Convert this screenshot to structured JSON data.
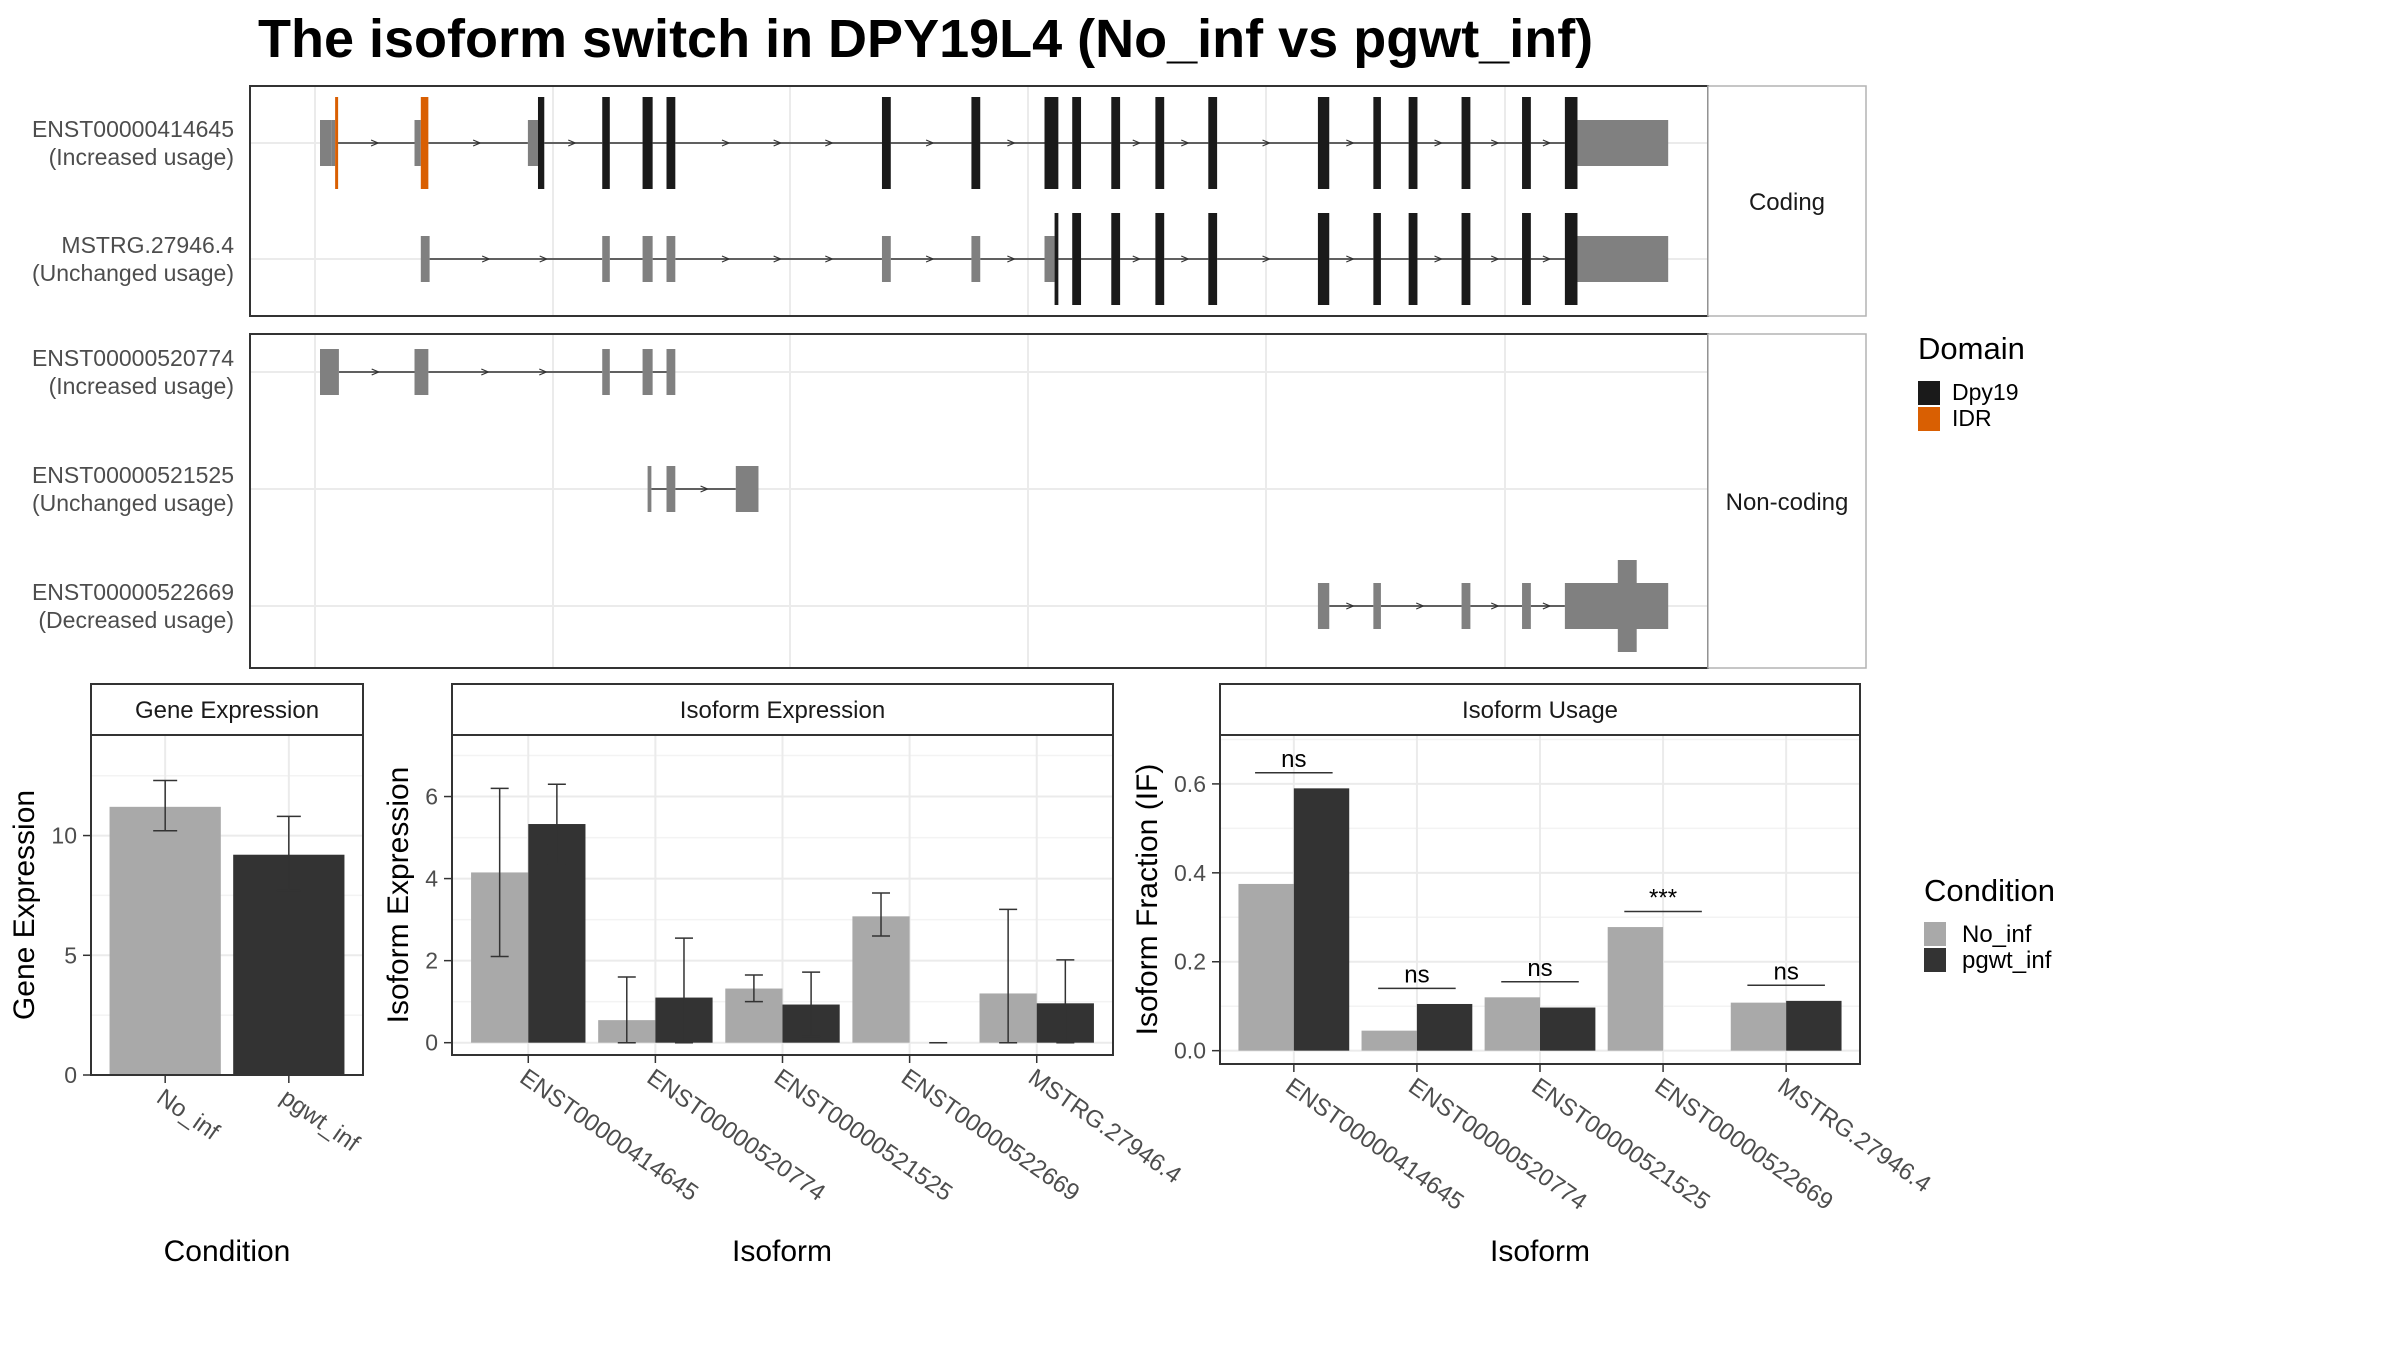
{
  "title": "The isoform switch in DPY19L4 (No_inf vs pgwt_inf)",
  "colors": {
    "no_inf": "#a9a9a9",
    "pgwt_inf": "#333333",
    "domain_dpy19": "#1a1a1a",
    "domain_idr": "#d95f02",
    "utr": "#808080",
    "grid": "#ebebeb",
    "strip_bg": "#ffffff",
    "panel_border": "#333333"
  },
  "structure": {
    "facets": [
      {
        "label": "Coding",
        "transcripts": [
          {
            "id": "ENST00000414645",
            "usage": "(Increased usage)",
            "exons": [
              [
                0.0,
                0.9,
                "utr"
              ],
              [
                0.9,
                1.2,
                "utr"
              ],
              [
                1.2,
                1.4,
                "IDR"
              ],
              [
                7.5,
                8.0,
                "utr"
              ],
              [
                8.0,
                8.6,
                "IDR"
              ],
              [
                16.5,
                17.3,
                "utr"
              ],
              [
                17.3,
                17.8,
                "Dpy19"
              ],
              [
                22.4,
                23.0,
                "Dpy19"
              ],
              [
                25.6,
                26.4,
                "Dpy19"
              ],
              [
                27.5,
                28.2,
                "Dpy19"
              ],
              [
                44.6,
                45.3,
                "Dpy19"
              ],
              [
                51.7,
                52.4,
                "Dpy19"
              ],
              [
                57.5,
                58.6,
                "Dpy19"
              ],
              [
                59.7,
                60.4,
                "Dpy19"
              ],
              [
                62.8,
                63.5,
                "Dpy19"
              ],
              [
                66.3,
                67.0,
                "Dpy19"
              ],
              [
                70.5,
                71.2,
                "Dpy19"
              ],
              [
                79.2,
                80.1,
                "Dpy19"
              ],
              [
                83.6,
                84.2,
                "Dpy19"
              ],
              [
                86.4,
                87.1,
                "Dpy19"
              ],
              [
                90.6,
                91.3,
                "Dpy19"
              ],
              [
                95.4,
                96.1,
                "Dpy19"
              ],
              [
                98.8,
                99.8,
                "Dpy19"
              ],
              [
                99.8,
                107.0,
                "utr"
              ]
            ]
          },
          {
            "id": "MSTRG.27946.4",
            "usage": "(Unchanged usage)",
            "exons": [
              [
                8.0,
                8.7,
                "utr"
              ],
              [
                22.4,
                23.0,
                "utr"
              ],
              [
                25.6,
                26.4,
                "utr"
              ],
              [
                27.5,
                28.2,
                "utr"
              ],
              [
                44.6,
                45.3,
                "utr"
              ],
              [
                51.7,
                52.4,
                "utr"
              ],
              [
                57.5,
                58.3,
                "utr"
              ],
              [
                58.3,
                58.6,
                "Dpy19"
              ],
              [
                59.7,
                60.4,
                "Dpy19"
              ],
              [
                62.8,
                63.5,
                "Dpy19"
              ],
              [
                66.3,
                67.0,
                "Dpy19"
              ],
              [
                70.5,
                71.2,
                "Dpy19"
              ],
              [
                79.2,
                80.1,
                "Dpy19"
              ],
              [
                83.6,
                84.2,
                "Dpy19"
              ],
              [
                86.4,
                87.1,
                "Dpy19"
              ],
              [
                90.6,
                91.3,
                "Dpy19"
              ],
              [
                95.4,
                96.1,
                "Dpy19"
              ],
              [
                98.8,
                99.8,
                "Dpy19"
              ],
              [
                99.8,
                107.0,
                "utr"
              ]
            ]
          }
        ]
      },
      {
        "label": "Non-coding",
        "transcripts": [
          {
            "id": "ENST00000520774",
            "usage": "(Increased usage)",
            "exons": [
              [
                0.0,
                1.5,
                "utr"
              ],
              [
                7.5,
                8.6,
                "utr"
              ],
              [
                22.4,
                23.0,
                "utr"
              ],
              [
                25.6,
                26.4,
                "utr"
              ],
              [
                27.5,
                28.2,
                "utr"
              ]
            ]
          },
          {
            "id": "ENST00000521525",
            "usage": "(Unchanged usage)",
            "exons": [
              [
                26.0,
                26.3,
                "utr"
              ],
              [
                27.5,
                28.2,
                "utr"
              ],
              [
                33.0,
                34.8,
                "utr"
              ]
            ]
          },
          {
            "id": "ENST00000522669",
            "usage": "(Decreased usage)",
            "exons": [
              [
                79.2,
                80.1,
                "utr"
              ],
              [
                83.6,
                84.2,
                "utr"
              ],
              [
                90.6,
                91.3,
                "utr"
              ],
              [
                95.4,
                96.1,
                "utr"
              ],
              [
                98.8,
                107.0,
                "utr"
              ]
            ],
            "tall_block": [
              103.0,
              104.5
            ]
          }
        ]
      }
    ],
    "legend": {
      "title": "Domain",
      "items": [
        "Dpy19",
        "IDR"
      ]
    }
  },
  "chart_data": [
    {
      "type": "bar",
      "strip": "Gene Expression",
      "categories": [
        "No_inf",
        "pgwt_inf"
      ],
      "values": [
        11.2,
        9.2
      ],
      "errors": [
        [
          10.2,
          12.3
        ],
        [
          7.7,
          10.8
        ]
      ],
      "xlabel": "Condition",
      "ylabel": "Gene Expression",
      "ylim": [
        0,
        14.2
      ],
      "yticks": [
        0,
        5,
        10
      ]
    },
    {
      "type": "bar",
      "strip": "Isoform Expression",
      "categories": [
        "ENST00000414645",
        "ENST00000520774",
        "ENST00000521525",
        "ENST00000522669",
        "MSTRG.27946.4"
      ],
      "series": [
        {
          "name": "No_inf",
          "values": [
            4.15,
            0.55,
            1.32,
            3.08,
            1.2
          ],
          "errors": [
            [
              2.1,
              6.2
            ],
            [
              0.0,
              1.6
            ],
            [
              1.0,
              1.65
            ],
            [
              2.6,
              3.65
            ],
            [
              0.0,
              3.25
            ]
          ]
        },
        {
          "name": "pgwt_inf",
          "values": [
            5.33,
            1.1,
            0.93,
            0.0,
            0.96
          ],
          "errors": [
            [
              4.35,
              6.3
            ],
            [
              0.0,
              2.55
            ],
            [
              0.15,
              1.72
            ],
            [
              0.0,
              0.0
            ],
            [
              0.0,
              2.02
            ]
          ]
        }
      ],
      "xlabel": "Isoform",
      "ylabel": "Isoform Expression",
      "ylim": [
        -0.3,
        7.5
      ],
      "yticks": [
        0,
        2,
        4,
        6
      ]
    },
    {
      "type": "bar",
      "strip": "Isoform Usage",
      "categories": [
        "ENST00000414645",
        "ENST00000520774",
        "ENST00000521525",
        "ENST00000522669",
        "MSTRG.27946.4"
      ],
      "series": [
        {
          "name": "No_inf",
          "values": [
            0.375,
            0.045,
            0.12,
            0.278,
            0.108
          ]
        },
        {
          "name": "pgwt_inf",
          "values": [
            0.59,
            0.105,
            0.097,
            0.0,
            0.112
          ]
        }
      ],
      "significance": [
        "ns",
        "ns",
        "ns",
        "***",
        "ns"
      ],
      "xlabel": "Isoform",
      "ylabel": "Isoform Fraction (IF)",
      "ylim": [
        -0.03,
        0.71
      ],
      "yticks": [
        0.0,
        0.2,
        0.4,
        0.6
      ],
      "ytick_labels": [
        "0.0",
        "0.2",
        "0.4",
        "0.6"
      ]
    }
  ],
  "condition_legend": {
    "title": "Condition",
    "items": [
      "No_inf",
      "pgwt_inf"
    ]
  }
}
